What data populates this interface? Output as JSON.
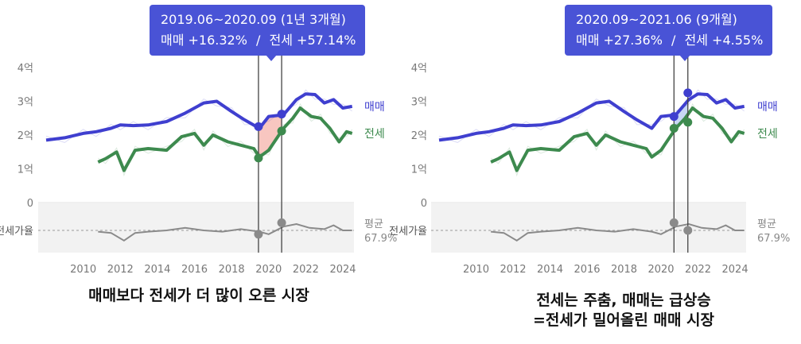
{
  "chart_data": [
    {
      "type": "line",
      "x_range": [
        2008,
        2024.6
      ],
      "x_ticks": [
        "2010",
        "2012",
        "2014",
        "2016",
        "2018",
        "2020",
        "2022",
        "2024"
      ],
      "y_ticks": [
        "4억",
        "3억",
        "2억",
        "1억",
        "0"
      ],
      "ylim": [
        0,
        4
      ],
      "lower_axis_label": "전세가율",
      "average_label": "평균",
      "average_value": "67.9%",
      "series": [
        {
          "name": "매매",
          "color": "#3f3fcf",
          "x": [
            2008,
            2009,
            2010,
            2010.7,
            2011.5,
            2012,
            2012.7,
            2013.5,
            2014.5,
            2015.5,
            2016.5,
            2017.2,
            2018,
            2018.7,
            2019.5,
            2020,
            2020.8,
            2021.5,
            2022,
            2022.5,
            2023,
            2023.5,
            2024,
            2024.5
          ],
          "y": [
            1.85,
            1.92,
            2.05,
            2.1,
            2.2,
            2.3,
            2.28,
            2.3,
            2.4,
            2.65,
            2.95,
            3.0,
            2.7,
            2.45,
            2.2,
            2.55,
            2.6,
            3.05,
            3.22,
            3.2,
            2.95,
            3.05,
            2.8,
            2.85
          ]
        },
        {
          "name": "전세",
          "color": "#3d8a4e",
          "x": [
            2010.8,
            2011.2,
            2011.8,
            2012.2,
            2012.8,
            2013.5,
            2014.5,
            2015.3,
            2016,
            2016.5,
            2017,
            2017.8,
            2018.5,
            2019.2,
            2019.5,
            2020,
            2020.8,
            2021.3,
            2021.7,
            2022.3,
            2022.8,
            2023.3,
            2023.8,
            2024.2,
            2024.5
          ],
          "y": [
            1.2,
            1.3,
            1.5,
            0.95,
            1.55,
            1.6,
            1.55,
            1.95,
            2.05,
            1.7,
            2.0,
            1.8,
            1.7,
            1.6,
            1.35,
            1.55,
            2.2,
            2.5,
            2.8,
            2.55,
            2.5,
            2.2,
            1.8,
            2.1,
            2.05
          ]
        }
      ],
      "ratio_series": {
        "color": "#8a8a8a",
        "x": [
          2010.8,
          2011.5,
          2012.2,
          2012.8,
          2013.5,
          2014.5,
          2015.5,
          2016.5,
          2017.5,
          2018.5,
          2019.5,
          2020,
          2020.8,
          2021.5,
          2022.2,
          2023,
          2023.5,
          2024,
          2024.5
        ],
        "y": [
          67,
          66,
          60,
          66,
          67,
          68,
          70,
          68,
          67,
          69,
          67,
          65,
          71,
          73,
          70,
          69,
          72,
          68,
          68
        ]
      },
      "highlight": {
        "from": 2019.45,
        "to": 2020.7,
        "fill": "#f6b8b0",
        "sale_from": 2.25,
        "sale_to": 2.62,
        "jeonse_from": 1.32,
        "jeonse_to": 2.12,
        "ratio_from": 65,
        "ratio_to": 74
      },
      "tooltip": {
        "period": "2019.06~2020.09 (1년 3개월)",
        "sale": "매매 +16.32%",
        "sep": "/",
        "jeonse": "전세 +57.14%"
      },
      "caption": [
        "매매보다 전세가 더 많이 오른 시장"
      ]
    },
    {
      "type": "line",
      "x_range": [
        2008,
        2024.6
      ],
      "x_ticks": [
        "2010",
        "2012",
        "2014",
        "2016",
        "2018",
        "2020",
        "2022",
        "2024"
      ],
      "y_ticks": [
        "4억",
        "3억",
        "2억",
        "1억",
        "0"
      ],
      "ylim": [
        0,
        4
      ],
      "lower_axis_label": "전세가율",
      "average_label": "평균",
      "average_value": "67.9%",
      "series": [
        {
          "name": "매매",
          "color": "#3f3fcf",
          "x": [
            2008,
            2009,
            2010,
            2010.7,
            2011.5,
            2012,
            2012.7,
            2013.5,
            2014.5,
            2015.5,
            2016.5,
            2017.2,
            2018,
            2018.7,
            2019.5,
            2020,
            2020.8,
            2021.5,
            2022,
            2022.5,
            2023,
            2023.5,
            2024,
            2024.5
          ],
          "y": [
            1.85,
            1.92,
            2.05,
            2.1,
            2.2,
            2.3,
            2.28,
            2.3,
            2.4,
            2.65,
            2.95,
            3.0,
            2.7,
            2.45,
            2.2,
            2.55,
            2.6,
            3.05,
            3.22,
            3.2,
            2.95,
            3.05,
            2.8,
            2.85
          ]
        },
        {
          "name": "전세",
          "color": "#3d8a4e",
          "x": [
            2010.8,
            2011.2,
            2011.8,
            2012.2,
            2012.8,
            2013.5,
            2014.5,
            2015.3,
            2016,
            2016.5,
            2017,
            2017.8,
            2018.5,
            2019.2,
            2019.5,
            2020,
            2020.8,
            2021.3,
            2021.7,
            2022.3,
            2022.8,
            2023.3,
            2023.8,
            2024.2,
            2024.5
          ],
          "y": [
            1.2,
            1.3,
            1.5,
            0.95,
            1.55,
            1.6,
            1.55,
            1.95,
            2.05,
            1.7,
            2.0,
            1.8,
            1.7,
            1.6,
            1.35,
            1.55,
            2.2,
            2.5,
            2.8,
            2.55,
            2.5,
            2.2,
            1.8,
            2.1,
            2.05
          ]
        }
      ],
      "ratio_series": {
        "color": "#8a8a8a",
        "x": [
          2010.8,
          2011.5,
          2012.2,
          2012.8,
          2013.5,
          2014.5,
          2015.5,
          2016.5,
          2017.5,
          2018.5,
          2019.5,
          2020,
          2020.8,
          2021.5,
          2022.2,
          2023,
          2023.5,
          2024,
          2024.5
        ],
        "y": [
          67,
          66,
          60,
          66,
          67,
          68,
          70,
          68,
          67,
          69,
          67,
          65,
          71,
          73,
          70,
          69,
          72,
          68,
          68
        ]
      },
      "highlight": {
        "from": 2020.7,
        "to": 2021.45,
        "fill": "#b9cdf2",
        "sale_from": 2.55,
        "sale_to": 3.25,
        "jeonse_from": 2.2,
        "jeonse_to": 2.38,
        "ratio_from": 74,
        "ratio_to": 68
      },
      "tooltip": {
        "period": "2020.09~2021.06 (9개월)",
        "sale": "매매 +27.36%",
        "sep": "/",
        "jeonse": "전세 +4.55%"
      },
      "caption": [
        "전세는 주춤, 매매는 급상승",
        "=전세가 밀어올린 매매 시장"
      ]
    }
  ]
}
